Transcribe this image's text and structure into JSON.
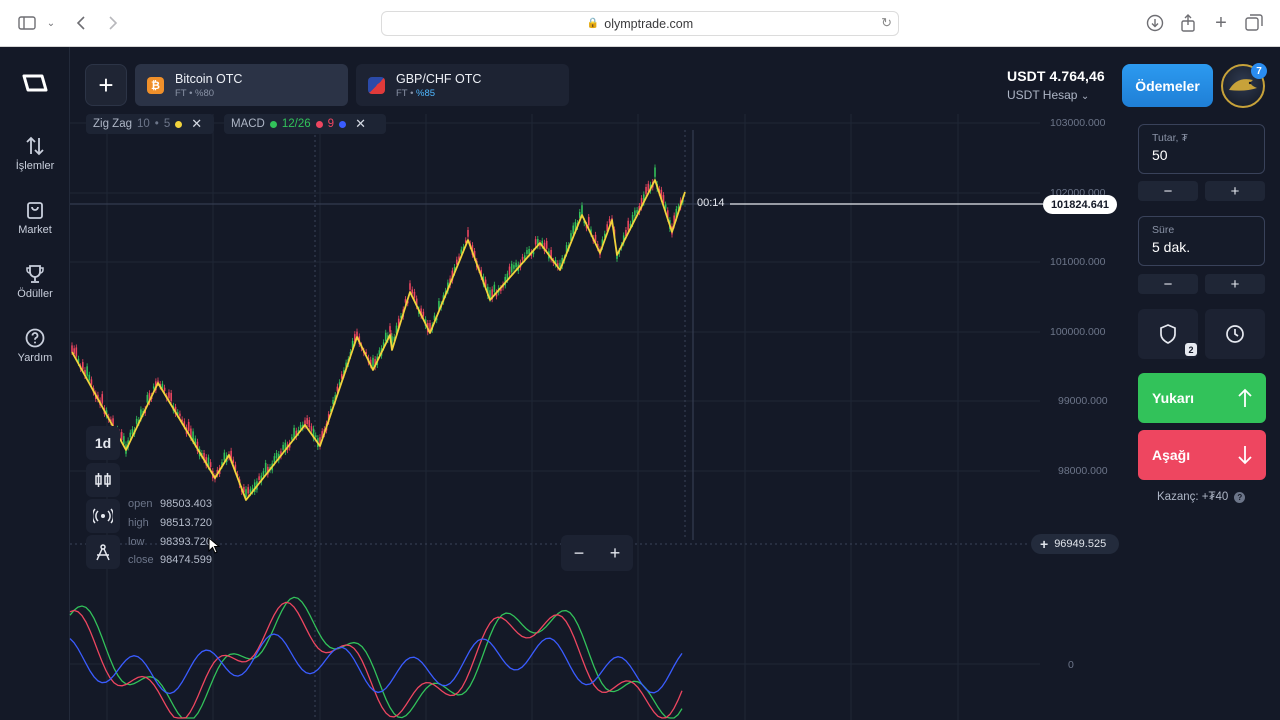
{
  "browser": {
    "url": "olymptrade.com"
  },
  "sidebar": {
    "items": [
      {
        "label": "İşlemler",
        "icon": "swap-arrows-icon"
      },
      {
        "label": "Market",
        "icon": "shopping-bag-icon"
      },
      {
        "label": "Ödüller",
        "icon": "trophy-icon"
      },
      {
        "label": "Yardım",
        "icon": "help-icon"
      }
    ]
  },
  "tabs": [
    {
      "name": "Bitcoin OTC",
      "sub_prefix": "FT • ",
      "payout": "%80",
      "active": true
    },
    {
      "name": "GBP/CHF OTC",
      "sub_prefix": "FT • ",
      "payout": "%85",
      "active": false
    }
  ],
  "indicators": [
    {
      "name": "Zig Zag",
      "p1": "10",
      "p2": "5",
      "color": "#f2d33c"
    },
    {
      "name": "MACD",
      "p1": "12/26",
      "p2": "9",
      "colors": [
        "#32c25a",
        "#ee4660",
        "#3a5cff"
      ]
    }
  ],
  "chart": {
    "price_ticks": [
      "103000.000",
      "102000.000",
      "101000.000",
      "100000.000",
      "99000.000",
      "98000.000"
    ],
    "current_price": "101824.641",
    "timer": "00:14",
    "hover_price": "96949.525",
    "macd_zero": "0",
    "timeframe": "1d",
    "ohlc": {
      "open_label": "open",
      "open": "98503.403",
      "high_label": "high",
      "high": "98513.720",
      "low_label": "low",
      "low": "98393.720",
      "close_label": "close",
      "close": "98474.599"
    }
  },
  "account": {
    "balance": "USDT 4.764,46",
    "account_label": "USDT Hesap",
    "payments_label": "Ödemeler",
    "notifications": "7"
  },
  "trade": {
    "amount_label": "Tutar, ₮",
    "amount_value": "50",
    "duration_label": "Süre",
    "duration_value": "5 dak.",
    "risk_badge": "2",
    "up_label": "Yukarı",
    "down_label": "Aşağı",
    "profit_text": "Kazanç: +₮40"
  },
  "colors": {
    "up": "#32c25a",
    "down": "#ee4660",
    "zigzag": "#f2d33c",
    "accent": "#2c9af0"
  }
}
